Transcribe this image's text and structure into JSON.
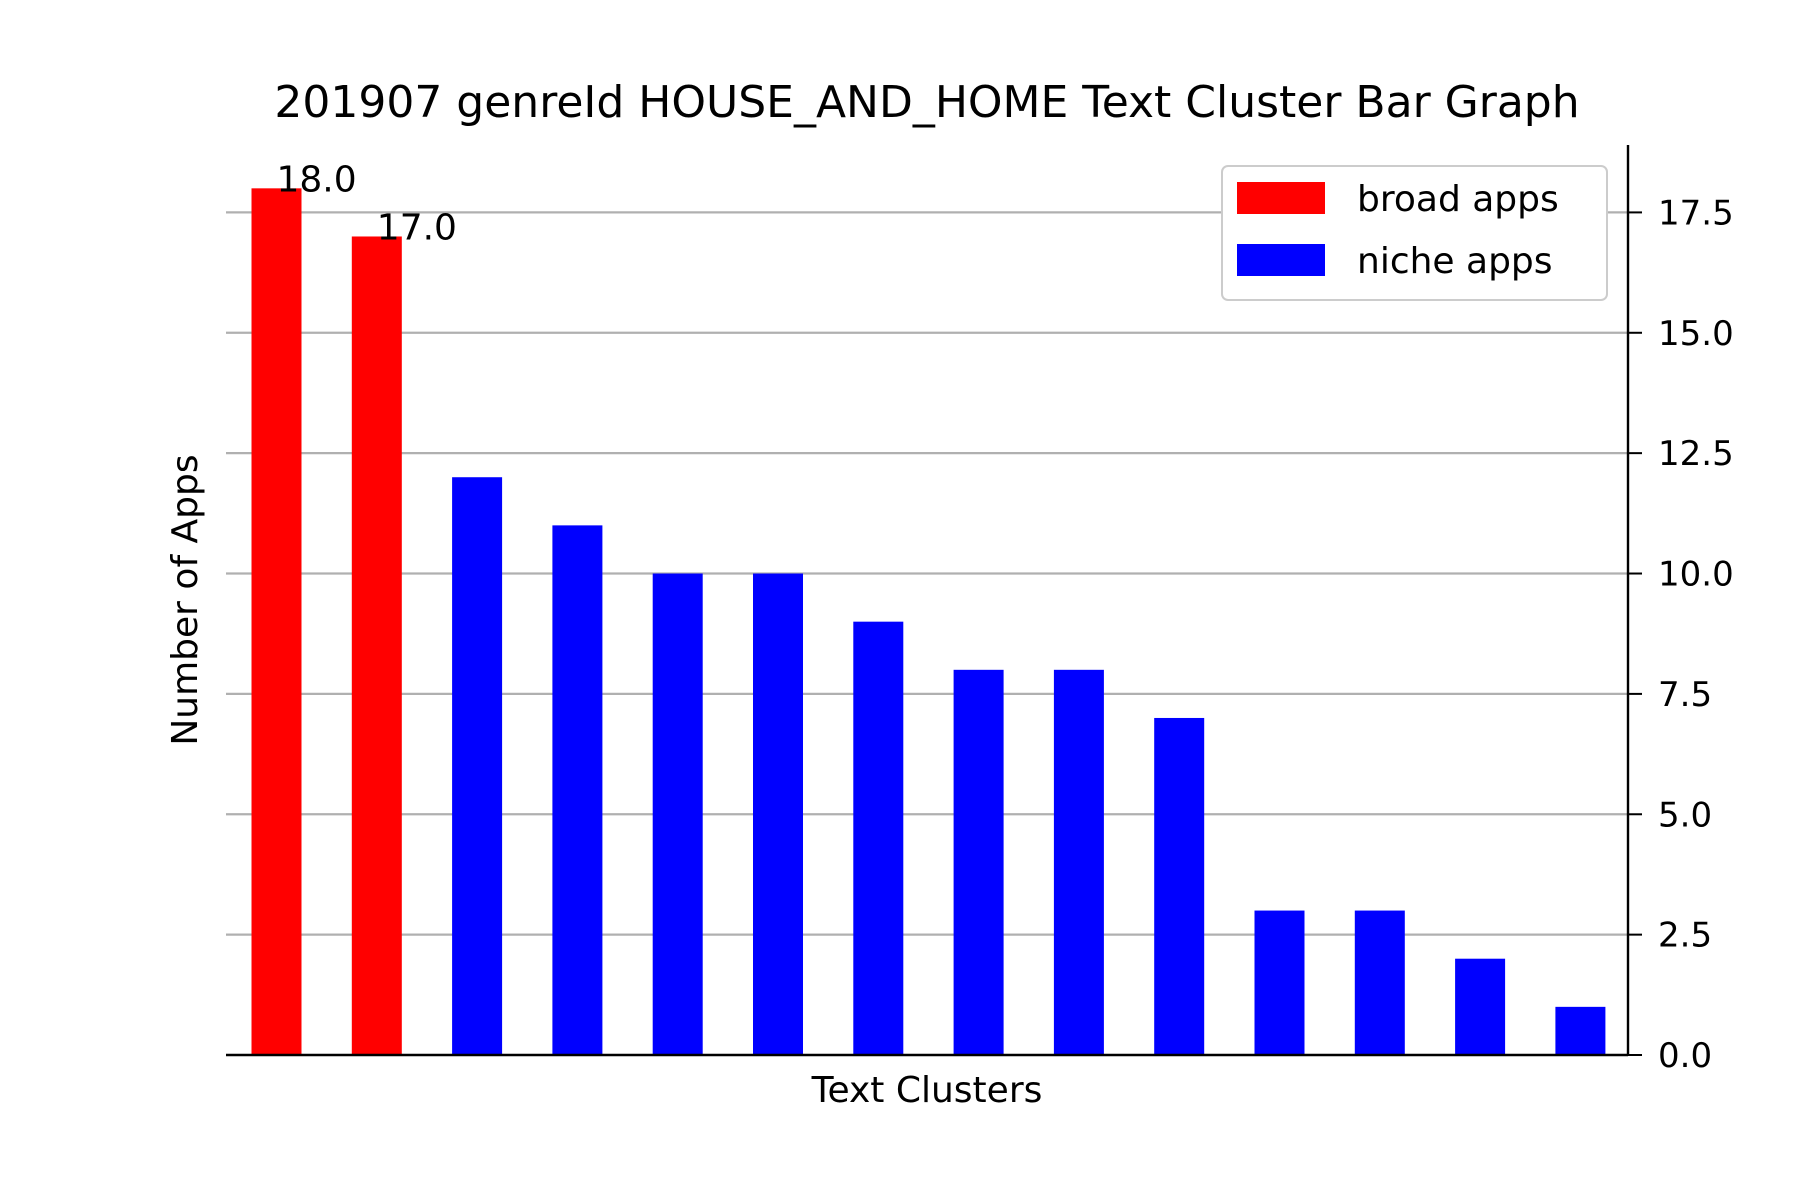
{
  "chart_data": {
    "type": "bar",
    "title": "201907 genreId HOUSE_AND_HOME Text Cluster Bar Graph",
    "xlabel": "Text Clusters",
    "ylabel": "Number of Apps",
    "ylim": [
      0,
      18.9
    ],
    "yticks": [
      0.0,
      2.5,
      5.0,
      7.5,
      10.0,
      12.5,
      15.0,
      17.5
    ],
    "ytick_labels": [
      "0.0",
      "2.5",
      "5.0",
      "7.5",
      "10.0",
      "12.5",
      "15.0",
      "17.5"
    ],
    "y_axis_side": "right",
    "grid": "horizontal",
    "legend_position": "top-right",
    "series": [
      {
        "name": "broad apps",
        "color": "#ff0000"
      },
      {
        "name": "niche apps",
        "color": "#0000ff"
      }
    ],
    "bars": [
      {
        "value": 18,
        "series": 0,
        "label": "18.0"
      },
      {
        "value": 17,
        "series": 0,
        "label": "17.0"
      },
      {
        "value": 12,
        "series": 1,
        "label": ""
      },
      {
        "value": 11,
        "series": 1,
        "label": ""
      },
      {
        "value": 10,
        "series": 1,
        "label": ""
      },
      {
        "value": 10,
        "series": 1,
        "label": ""
      },
      {
        "value": 9,
        "series": 1,
        "label": ""
      },
      {
        "value": 8,
        "series": 1,
        "label": ""
      },
      {
        "value": 8,
        "series": 1,
        "label": ""
      },
      {
        "value": 7,
        "series": 1,
        "label": ""
      },
      {
        "value": 3,
        "series": 1,
        "label": ""
      },
      {
        "value": 3,
        "series": 1,
        "label": ""
      },
      {
        "value": 2,
        "series": 1,
        "label": ""
      },
      {
        "value": 1,
        "series": 1,
        "label": ""
      }
    ]
  }
}
